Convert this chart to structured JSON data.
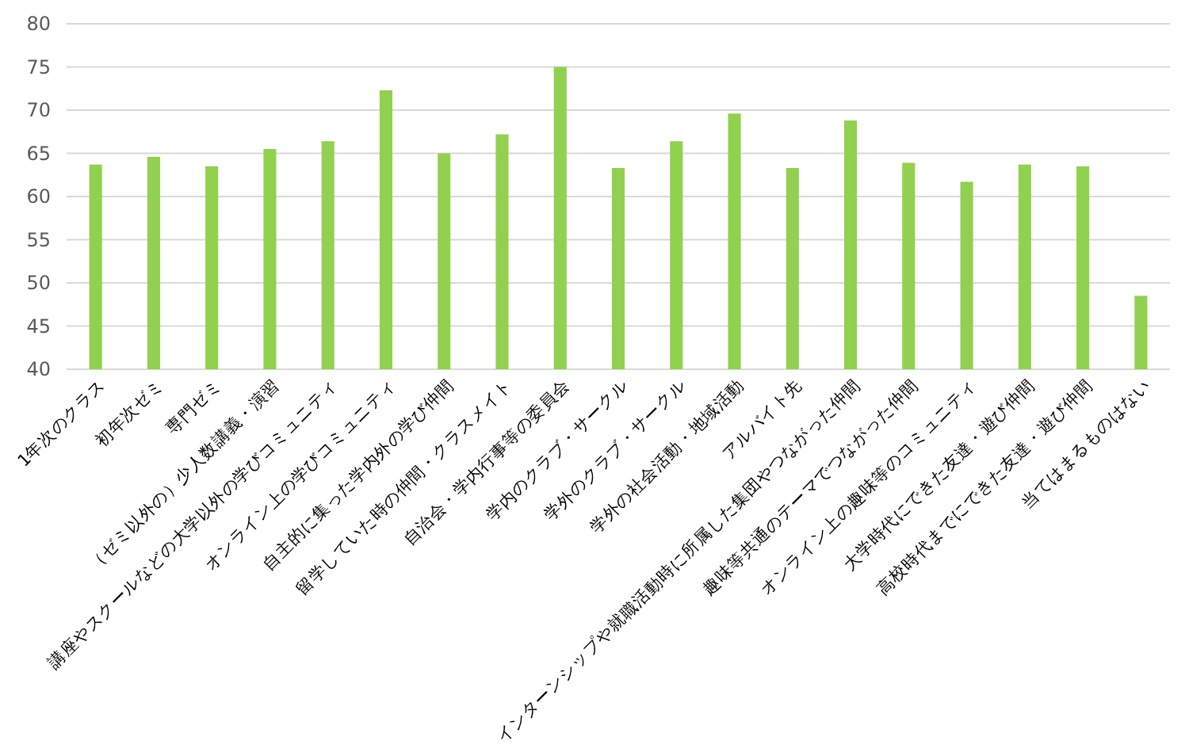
{
  "chart_data": {
    "type": "bar",
    "categories": [
      "1年次のクラス",
      "初年次ゼミ",
      "専門ゼミ",
      "（ゼミ以外の）少人数講義・演習",
      "講座やスクールなどの大学以外の学びコミュニティ",
      "オンライン上の学びコミュニティ",
      "自主的に集った学内外の学び仲間",
      "留学していた時の仲間・クラスメイト",
      "自治会・学内行事等の委員会",
      "学内のクラブ・サークル",
      "学外のクラブ・サークル",
      "学外の社会活動・地域活動",
      "アルバイト先",
      "インターンシップや就職活動時に所属した集団やつながった仲間",
      "趣味等共通のテーマでつながった仲間",
      "オンライン上の趣味等のコミュニティ",
      "大学時代にできた友達・遊び仲間",
      "高校時代までにできた友達・遊び仲間",
      "当てはまるものはない"
    ],
    "values": [
      63.7,
      64.6,
      63.5,
      65.5,
      66.4,
      72.3,
      65.0,
      67.2,
      75.0,
      63.3,
      66.4,
      69.6,
      63.3,
      68.8,
      63.9,
      61.7,
      63.7,
      63.5,
      48.5
    ],
    "color": "#92d050",
    "ylim": [
      40,
      80
    ],
    "yticks": [
      40,
      45,
      50,
      55,
      60,
      65,
      70,
      75,
      80
    ],
    "grid": "y"
  }
}
